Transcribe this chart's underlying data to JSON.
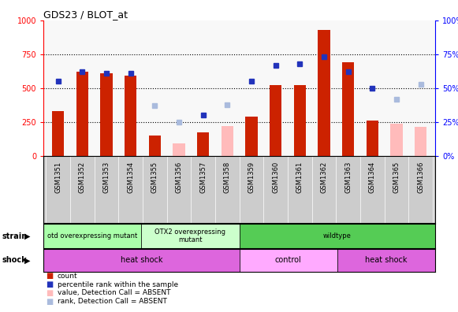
{
  "title": "GDS23 / BLOT_at",
  "samples": [
    "GSM1351",
    "GSM1352",
    "GSM1353",
    "GSM1354",
    "GSM1355",
    "GSM1356",
    "GSM1357",
    "GSM1358",
    "GSM1359",
    "GSM1360",
    "GSM1361",
    "GSM1362",
    "GSM1363",
    "GSM1364",
    "GSM1365",
    "GSM1366"
  ],
  "count_values": [
    330,
    620,
    610,
    590,
    150,
    null,
    175,
    null,
    290,
    520,
    520,
    930,
    690,
    260,
    null,
    null
  ],
  "count_absent": [
    null,
    null,
    null,
    null,
    null,
    90,
    null,
    220,
    null,
    null,
    null,
    null,
    null,
    null,
    240,
    215
  ],
  "rank_values": [
    55,
    62,
    61,
    61,
    null,
    null,
    30,
    null,
    55,
    67,
    68,
    73,
    62,
    50,
    null,
    null
  ],
  "rank_absent": [
    null,
    null,
    null,
    null,
    37,
    25,
    null,
    38,
    null,
    null,
    null,
    null,
    null,
    null,
    42,
    53
  ],
  "ylim_left": [
    0,
    1000
  ],
  "ylim_right": [
    0,
    100
  ],
  "yticks_left": [
    0,
    250,
    500,
    750,
    1000
  ],
  "yticks_right": [
    0,
    25,
    50,
    75,
    100
  ],
  "strain_groups": [
    {
      "label": "otd overexpressing mutant",
      "start": 0,
      "end": 4,
      "color": "#aaffaa"
    },
    {
      "label": "OTX2 overexpressing\nmutant",
      "start": 4,
      "end": 8,
      "color": "#ccffcc"
    },
    {
      "label": "wildtype",
      "start": 8,
      "end": 16,
      "color": "#55cc55"
    }
  ],
  "shock_groups": [
    {
      "label": "heat shock",
      "start": 0,
      "end": 8,
      "color": "#dd66dd"
    },
    {
      "label": "control",
      "start": 8,
      "end": 12,
      "color": "#ffaaff"
    },
    {
      "label": "heat shock",
      "start": 12,
      "end": 16,
      "color": "#dd66dd"
    }
  ],
  "bar_width": 0.5,
  "count_color": "#cc2200",
  "count_absent_color": "#ffbbbb",
  "rank_color": "#2233bb",
  "rank_absent_color": "#aabbdd",
  "plot_bg": "#f8f8f8",
  "fig_bg": "#ffffff",
  "legend_items": [
    {
      "label": "count",
      "color": "#cc2200"
    },
    {
      "label": "percentile rank within the sample",
      "color": "#2233bb"
    },
    {
      "label": "value, Detection Call = ABSENT",
      "color": "#ffbbbb"
    },
    {
      "label": "rank, Detection Call = ABSENT",
      "color": "#aabbdd"
    }
  ]
}
